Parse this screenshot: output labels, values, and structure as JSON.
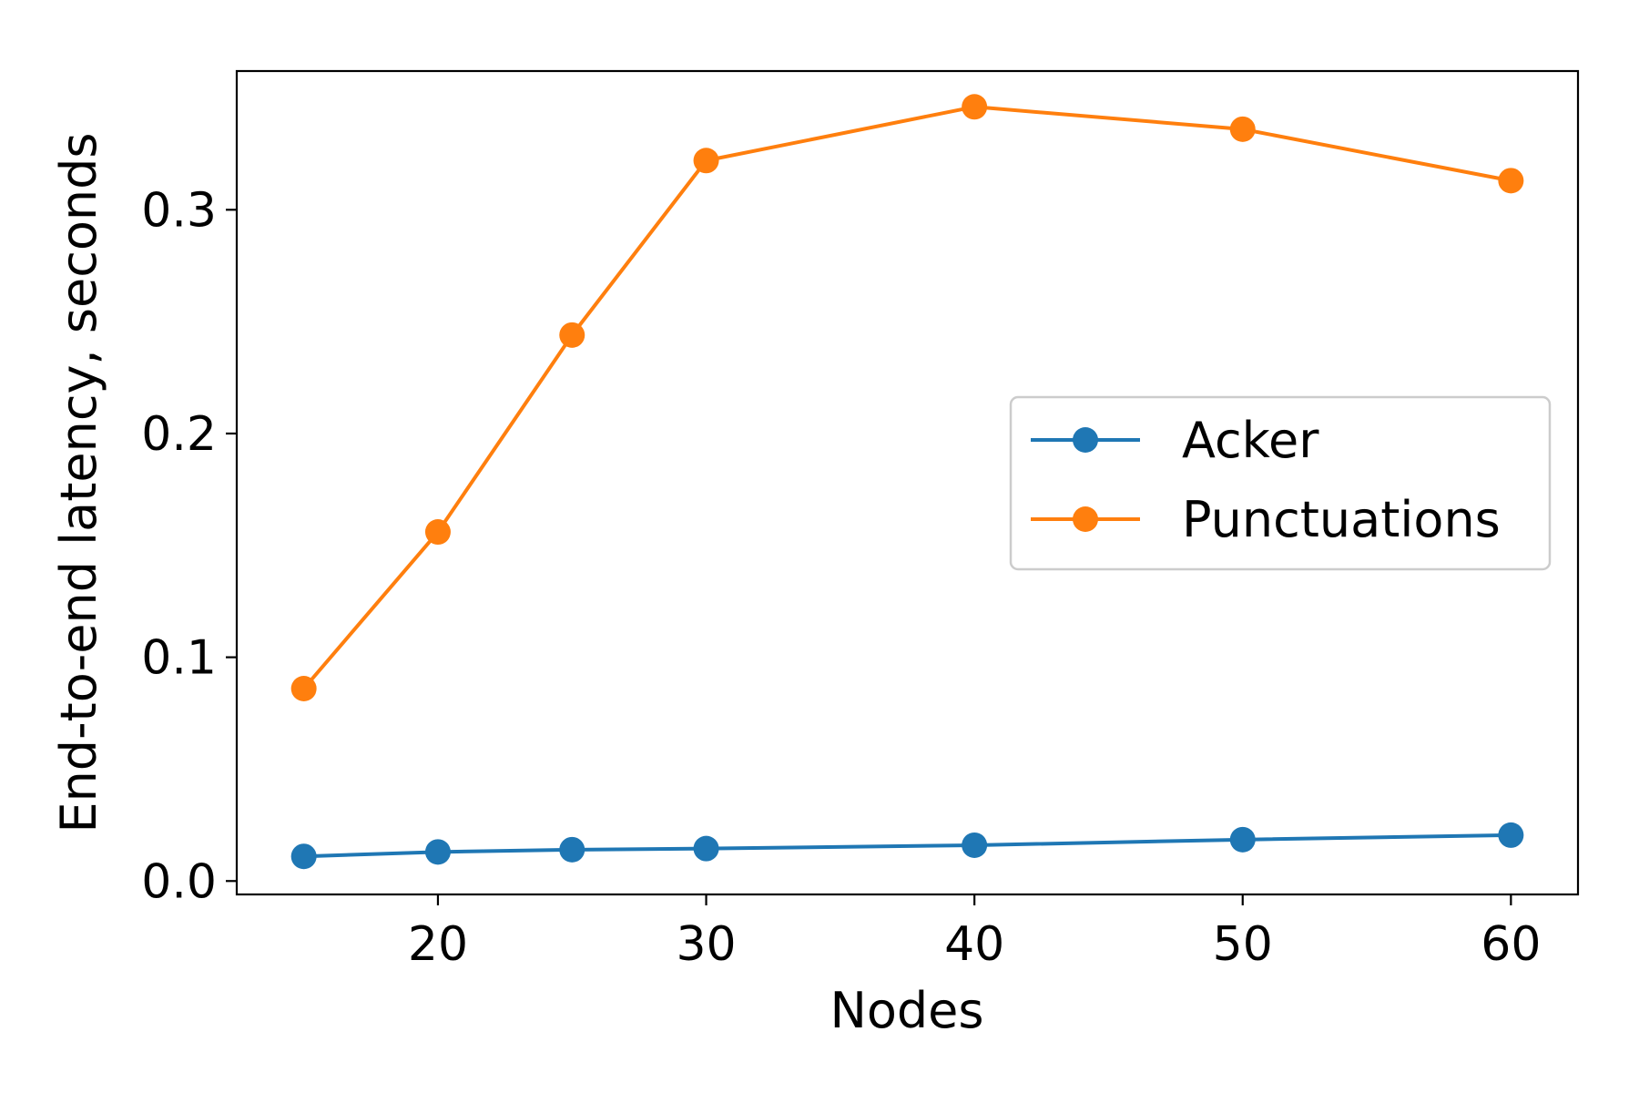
{
  "chart_data": {
    "type": "line",
    "title": "",
    "xlabel": "Nodes",
    "ylabel": "End-to-end latency, seconds",
    "x": [
      15,
      20,
      25,
      30,
      40,
      50,
      60
    ],
    "xlim": [
      12.5,
      62.5
    ],
    "ylim": [
      -0.006,
      0.362
    ],
    "xticks": [
      20,
      30,
      40,
      50,
      60
    ],
    "xtick_labels": [
      "20",
      "30",
      "40",
      "50",
      "60"
    ],
    "yticks": [
      0.0,
      0.1,
      0.2,
      0.3
    ],
    "ytick_labels": [
      "0.0",
      "0.1",
      "0.2",
      "0.3"
    ],
    "grid": false,
    "legend_position": "center-right",
    "series": [
      {
        "name": "Acker",
        "color": "#1f77b4",
        "marker": "circle",
        "values": [
          0.011,
          0.013,
          0.014,
          0.0145,
          0.016,
          0.0185,
          0.0205
        ]
      },
      {
        "name": "Punctuations",
        "color": "#ff7f0e",
        "marker": "circle",
        "values": [
          0.086,
          0.156,
          0.244,
          0.322,
          0.346,
          0.336,
          0.313
        ]
      }
    ]
  }
}
